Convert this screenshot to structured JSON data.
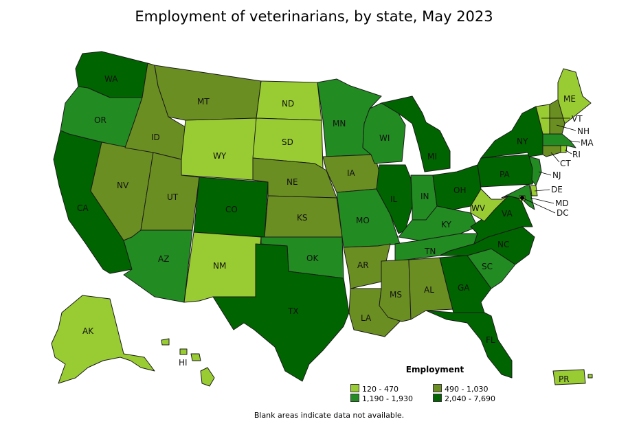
{
  "title": "Employment of veterinarians, by state, May 2023",
  "legend": {
    "title": "Employment",
    "bins": [
      {
        "label": "120 - 470",
        "color": "#99cc33"
      },
      {
        "label": "490 - 1,030",
        "color": "#6b8e23"
      },
      {
        "label": "1,190 - 1,930",
        "color": "#228b22"
      },
      {
        "label": "2,040 - 7,690",
        "color": "#006400"
      }
    ]
  },
  "note": "Blank areas indicate data not available.",
  "states": {
    "WA": 3,
    "OR": 2,
    "CA": 3,
    "NV": 1,
    "ID": 1,
    "MT": 1,
    "WY": 0,
    "UT": 1,
    "AZ": 2,
    "CO": 3,
    "NM": 0,
    "ND": 0,
    "SD": 0,
    "NE": 1,
    "KS": 1,
    "OK": 2,
    "TX": 3,
    "MN": 2,
    "IA": 1,
    "MO": 2,
    "AR": 1,
    "LA": 1,
    "WI": 2,
    "IL": 3,
    "MI": 3,
    "IN": 2,
    "OH": 3,
    "KY": 2,
    "TN": 2,
    "MS": 1,
    "AL": 1,
    "GA": 3,
    "FL": 3,
    "SC": 2,
    "NC": 3,
    "VA": 3,
    "WV": 0,
    "PA": 3,
    "NY": 3,
    "ME": 0,
    "VT": 0,
    "NH": 1,
    "MA": 2,
    "RI": 0,
    "CT": 1,
    "NJ": 2,
    "DE": 0,
    "MD": 2,
    "DC": 0,
    "AK": 0,
    "HI": 0,
    "PR": 0
  },
  "labels": {
    "WA": "WA",
    "OR": "OR",
    "CA": "CA",
    "NV": "NV",
    "ID": "ID",
    "MT": "MT",
    "WY": "WY",
    "UT": "UT",
    "AZ": "AZ",
    "CO": "CO",
    "NM": "NM",
    "ND": "ND",
    "SD": "SD",
    "NE": "NE",
    "KS": "KS",
    "OK": "OK",
    "TX": "TX",
    "MN": "MN",
    "IA": "IA",
    "MO": "MO",
    "AR": "AR",
    "LA": "LA",
    "WI": "WI",
    "IL": "IL",
    "MI": "MI",
    "IN": "IN",
    "OH": "OH",
    "KY": "KY",
    "TN": "TN",
    "MS": "MS",
    "AL": "AL",
    "GA": "GA",
    "FL": "FL",
    "SC": "SC",
    "NC": "NC",
    "VA": "VA",
    "WV": "WV",
    "PA": "PA",
    "NY": "NY",
    "ME": "ME",
    "VT": "VT",
    "NH": "NH",
    "MA": "MA",
    "RI": "RI",
    "CT": "CT",
    "NJ": "NJ",
    "DE": "DE",
    "MD": "MD",
    "DC": "DC",
    "AK": "AK",
    "HI": "HI",
    "PR": "PR"
  }
}
